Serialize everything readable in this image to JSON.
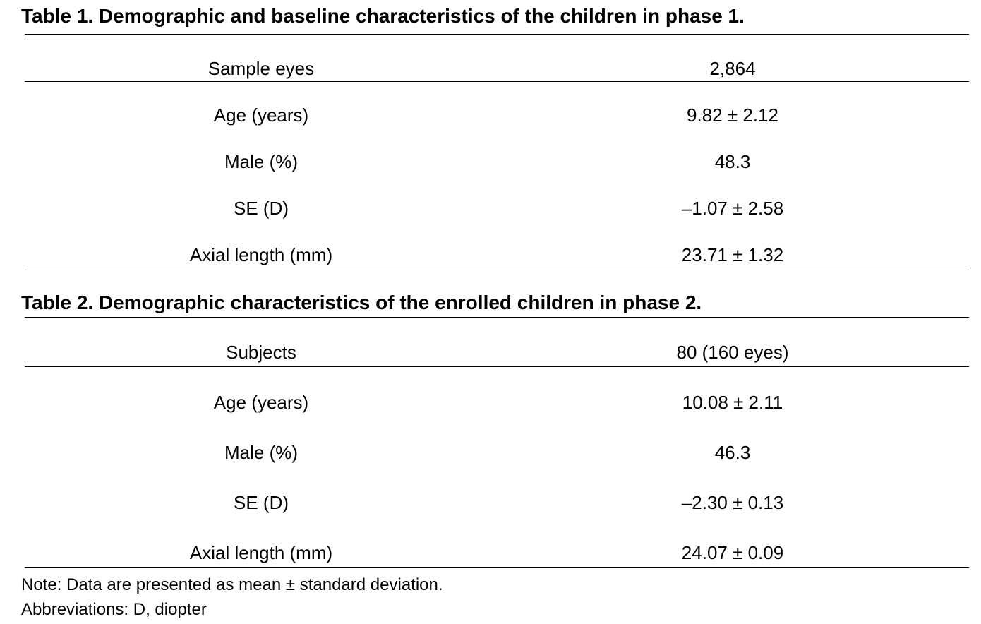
{
  "table1": {
    "caption": "Table 1. Demographic and baseline characteristics of the children in phase 1.",
    "rows": [
      {
        "label": "Sample eyes",
        "value": "2,864"
      },
      {
        "label": "Age (years)",
        "value": "9.82 ± 2.12"
      },
      {
        "label": "Male (%)",
        "value": "48.3"
      },
      {
        "label": "SE (D)",
        "value": "–1.07 ± 2.58"
      },
      {
        "label": "Axial length (mm)",
        "value": "23.71 ± 1.32"
      }
    ]
  },
  "table2": {
    "caption": "Table 2. Demographic characteristics of the enrolled children in phase 2.",
    "rows": [
      {
        "label": "Subjects",
        "value": "80 (160 eyes)"
      },
      {
        "label": "Age (years)",
        "value": "10.08 ± 2.11"
      },
      {
        "label": "Male (%)",
        "value": "46.3"
      },
      {
        "label": "SE (D)",
        "value": "–2.30 ± 0.13"
      },
      {
        "label": "Axial length (mm)",
        "value": "24.07 ± 0.09"
      }
    ]
  },
  "notes": {
    "note": "Note: Data are presented as mean ± standard deviation.",
    "abbreviations": "Abbreviations: D, diopter"
  }
}
